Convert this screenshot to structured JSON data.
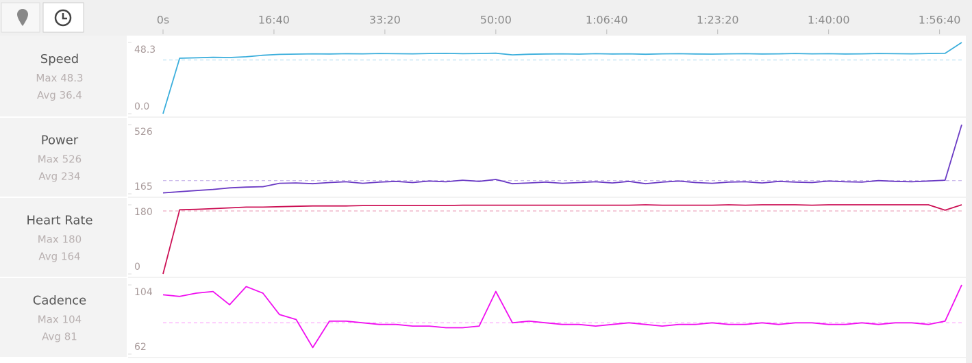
{
  "chart_data": {
    "type": "line",
    "xlim": [
      0,
      7200
    ],
    "xticks": [
      {
        "value": 0,
        "label": "0s"
      },
      {
        "value": 1000,
        "label": "16:40"
      },
      {
        "value": 2000,
        "label": "33:20"
      },
      {
        "value": 3000,
        "label": "50:00"
      },
      {
        "value": 4000,
        "label": "1:06:40"
      },
      {
        "value": 5000,
        "label": "1:23:20"
      },
      {
        "value": 6000,
        "label": "1:40:00"
      },
      {
        "value": 7000,
        "label": "1:56:40"
      }
    ],
    "x": [
      0,
      150,
      300,
      450,
      600,
      750,
      900,
      1050,
      1200,
      1350,
      1500,
      1650,
      1800,
      1950,
      2100,
      2250,
      2400,
      2550,
      2700,
      2850,
      3000,
      3150,
      3300,
      3450,
      3600,
      3750,
      3900,
      4050,
      4200,
      4350,
      4500,
      4650,
      4800,
      4950,
      5100,
      5250,
      5400,
      5550,
      5700,
      5850,
      6000,
      6150,
      6300,
      6450,
      6600,
      6750,
      6900,
      7050,
      7200
    ],
    "panels": [
      {
        "name": "Speed",
        "color": "#3aaedc",
        "ylim": [
          0,
          48.3
        ],
        "yticks": [
          {
            "value": 0,
            "label": "0.0"
          },
          48.3
        ],
        "stats": [
          {
            "label": "Max",
            "value": 48.3
          },
          {
            "label": "Avg",
            "value": 36.4
          }
        ],
        "values": [
          0,
          37.6,
          37.9,
          38.2,
          38.1,
          38.6,
          39.6,
          40.2,
          40.4,
          40.6,
          40.5,
          40.7,
          40.6,
          40.8,
          40.7,
          40.6,
          40.8,
          40.9,
          40.7,
          40.8,
          41.0,
          39.9,
          40.3,
          40.5,
          40.6,
          40.4,
          40.7,
          40.5,
          40.6,
          40.3,
          40.6,
          40.7,
          40.5,
          40.4,
          40.6,
          40.7,
          40.5,
          40.6,
          40.8,
          40.6,
          40.7,
          40.5,
          40.6,
          40.8,
          40.7,
          40.6,
          40.8,
          40.9,
          48.3
        ]
      },
      {
        "name": "Power",
        "color": "#6a3ac4",
        "ylim": [
          165,
          526
        ],
        "yticks": [
          526,
          165
        ],
        "stats": [
          {
            "label": "Max",
            "value": 526
          },
          {
            "label": "Avg",
            "value": 234
          }
        ],
        "values": [
          170,
          176,
          182,
          188,
          196,
          200,
          202,
          220,
          222,
          218,
          224,
          228,
          220,
          226,
          230,
          224,
          232,
          228,
          236,
          230,
          240,
          218,
          222,
          226,
          220,
          224,
          228,
          222,
          230,
          218,
          226,
          232,
          224,
          220,
          226,
          228,
          222,
          230,
          226,
          224,
          232,
          228,
          226,
          234,
          230,
          228,
          232,
          236,
          526
        ]
      },
      {
        "name": "Heart Rate",
        "color": "#cc1155",
        "ylim": [
          0,
          180
        ],
        "yticks": [
          180,
          0
        ],
        "stats": [
          {
            "label": "Max",
            "value": 180
          },
          {
            "label": "Avg",
            "value": 164
          }
        ],
        "values": [
          0,
          167,
          168,
          170,
          172,
          174,
          174,
          175,
          176,
          177,
          177,
          177,
          178,
          178,
          178,
          178,
          178,
          178,
          179,
          179,
          179,
          179,
          179,
          179,
          179,
          179,
          179,
          179,
          179,
          180,
          179,
          179,
          179,
          179,
          180,
          179,
          180,
          180,
          180,
          179,
          180,
          180,
          180,
          180,
          180,
          180,
          180,
          166,
          180
        ]
      },
      {
        "name": "Cadence",
        "color": "#f00ff0",
        "ylim": [
          62,
          104
        ],
        "yticks": [
          104,
          62
        ],
        "stats": [
          {
            "label": "Max",
            "value": 104
          },
          {
            "label": "Avg",
            "value": 81
          }
        ],
        "values": [
          98,
          97,
          99,
          100,
          92,
          103,
          99,
          86,
          83,
          66,
          82,
          82,
          81,
          80,
          80,
          79,
          79,
          78,
          78,
          79,
          100,
          81,
          82,
          81,
          80,
          80,
          79,
          80,
          81,
          80,
          79,
          80,
          80,
          81,
          80,
          80,
          81,
          80,
          81,
          81,
          80,
          80,
          81,
          80,
          81,
          81,
          80,
          82,
          104
        ]
      }
    ]
  }
}
